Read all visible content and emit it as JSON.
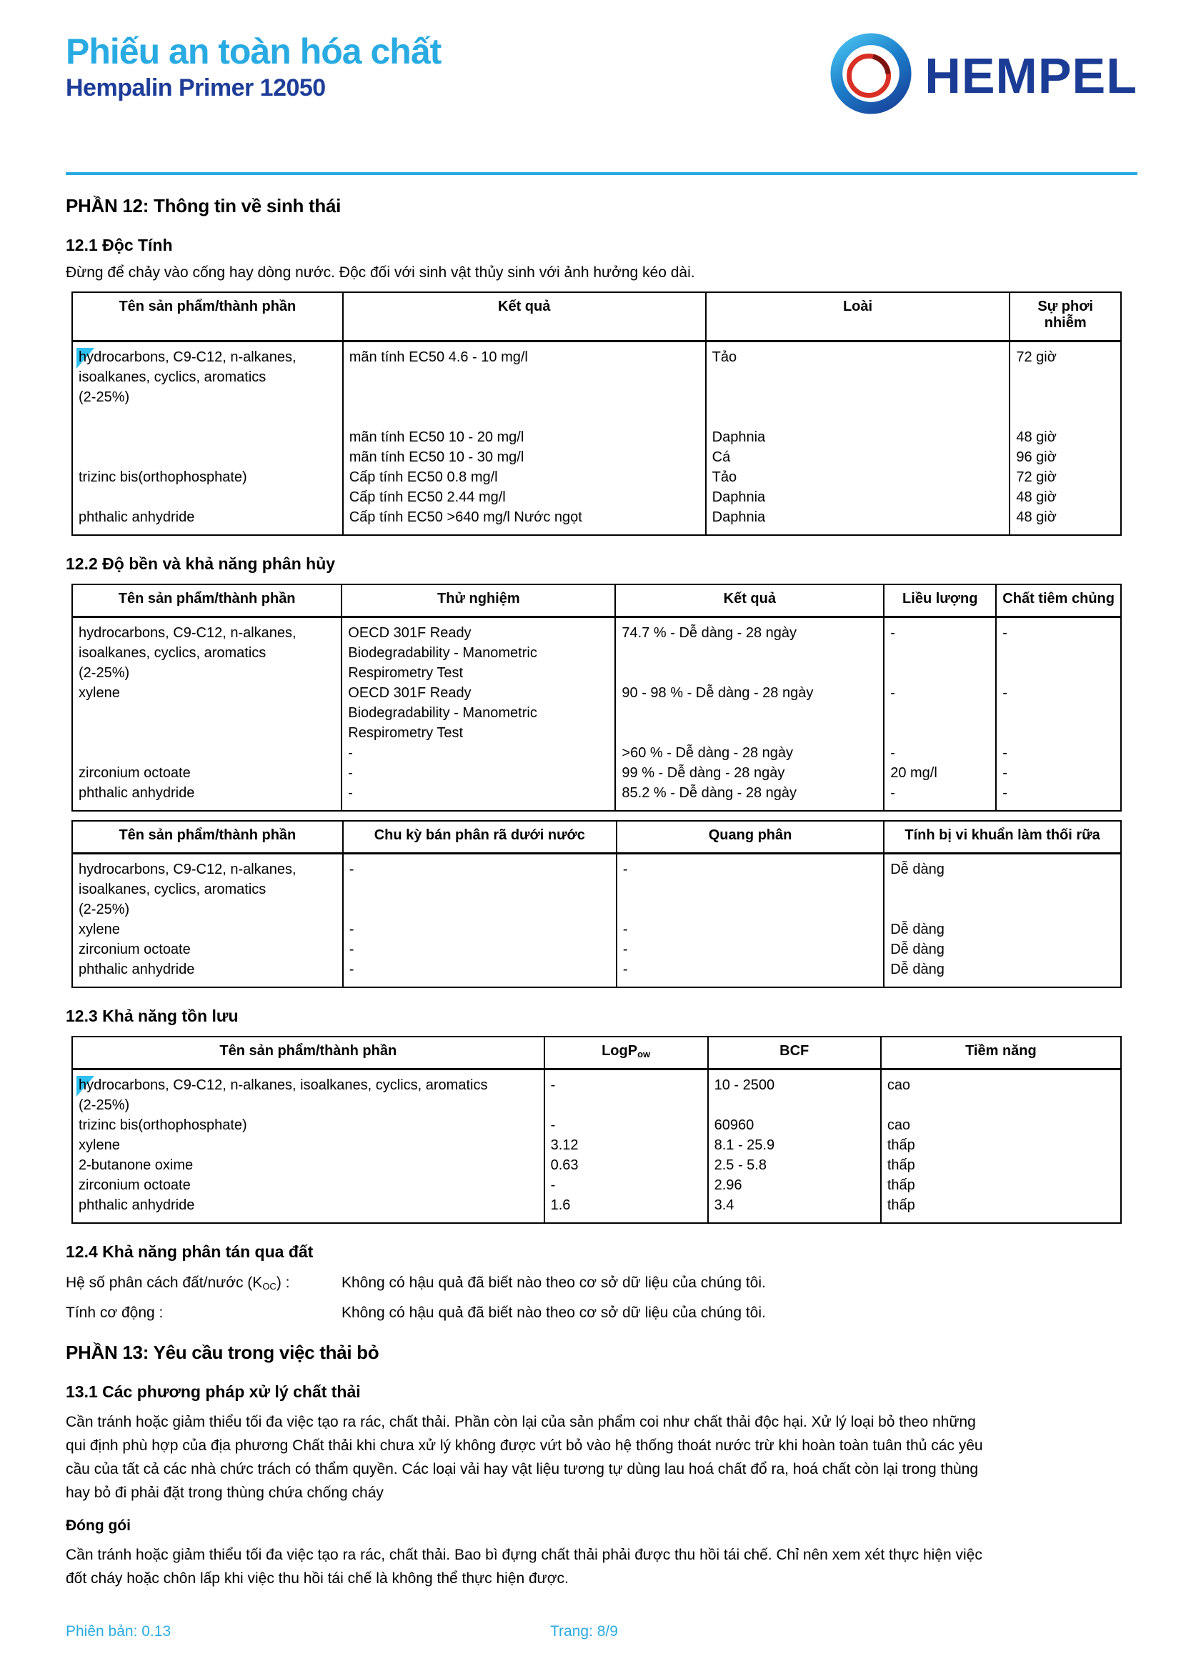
{
  "header": {
    "doc_title": "Phiếu an toàn hóa chất",
    "product_name": "Hempalin Primer 12050",
    "brand": "HEMPEL"
  },
  "colors": {
    "accent_cyan": "#29abe2",
    "navy": "#1e3d98",
    "logo_blue": "#1b3c94",
    "logo_red": "#d93025",
    "highlight_cyan": "#2ec0f0"
  },
  "section_12": {
    "title": "PHẦN 12: Thông tin về sinh thái",
    "subsection_12_1": {
      "title": "12.1 Độc Tính",
      "note": "Đừng để chảy vào cống hay dòng nước. Độc đối với sinh vật thủy sinh với ảnh hưởng kéo dài.",
      "toxicity_table": {
        "headers": [
          "Tên sản phẩm/thành phần",
          "Kết quả",
          "Loài",
          "Sự phơi nhiễm"
        ],
        "col_widths": [
          "25.8%",
          "34.6%",
          "29.0%",
          "10.6%"
        ],
        "lines": [
          [
            {
              "hl": "hy",
              "text": "drocarbons, C9-C12, n-alkanes,"
            },
            "mãn tính EC50 4.6 - 10 mg/l",
            "Tảo",
            "72 giờ"
          ],
          [
            "isoalkanes, cyclics, aromatics",
            "",
            "",
            ""
          ],
          [
            "(2-25%)",
            "",
            "",
            ""
          ],
          [
            "",
            "",
            "",
            ""
          ],
          [
            "",
            "mãn tính EC50 10 - 20 mg/l",
            "Daphnia",
            "48 giờ"
          ],
          [
            "",
            "mãn tính EC50 10 - 30 mg/l",
            "Cá",
            "96 giờ"
          ],
          [
            "trizinc bis(orthophosphate)",
            "Cấp tính EC50 0.8 mg/l",
            "Tảo",
            "72 giờ"
          ],
          [
            "",
            "Cấp tính EC50 2.44 mg/l",
            "Daphnia",
            "48 giờ"
          ],
          [
            "phthalic anhydride",
            "Cấp tính EC50 >640 mg/l Nước ngọt",
            "Daphnia",
            "48 giờ"
          ]
        ]
      }
    },
    "subsection_12_2": {
      "title": "12.2 Độ bền và khả năng phân hủy",
      "degradability_table": {
        "headers": [
          "Tên sản phẩm/thành phần",
          "Thử nghiệm",
          "Kết quả",
          "Liều lượng",
          "Chất tiêm chủng"
        ],
        "col_widths": [
          "25.7%",
          "26.1%",
          "25.6%",
          "10.7%",
          "11.9%"
        ],
        "lines": [
          [
            "hydrocarbons, C9-C12, n-alkanes,",
            "OECD 301F Ready",
            "74.7 % - Dễ dàng - 28 ngày",
            "-",
            "-"
          ],
          [
            "isoalkanes, cyclics, aromatics",
            "Biodegradability - Manometric",
            "",
            "",
            ""
          ],
          [
            "(2-25%)",
            "Respirometry Test",
            "",
            "",
            ""
          ],
          [
            "xylene",
            "OECD 301F Ready",
            "90 - 98 % - Dễ dàng - 28 ngày",
            "-",
            "-"
          ],
          [
            "",
            "Biodegradability - Manometric",
            "",
            "",
            ""
          ],
          [
            "",
            "Respirometry Test",
            "",
            "",
            ""
          ],
          [
            "",
            "-",
            ">60 % - Dễ dàng - 28 ngày",
            "-",
            "-"
          ],
          [
            "zirconium octoate",
            "-",
            "99 % - Dễ dàng - 28 ngày",
            "20 mg/l",
            "-"
          ],
          [
            "phthalic anhydride",
            "-",
            "85.2 % - Dễ dàng - 28 ngày",
            "-",
            "-"
          ]
        ]
      },
      "halflife_table": {
        "headers": [
          "Tên sản phẩm/thành phần",
          "Chu kỳ bán phân rã dưới nước",
          "Quang phân",
          "Tính bị vi khuẩn làm thối rữa"
        ],
        "col_widths": [
          "25.8%",
          "26.1%",
          "25.5%",
          "22.6%"
        ],
        "lines": [
          [
            "hydrocarbons, C9-C12, n-alkanes,",
            "-",
            "-",
            "Dễ dàng"
          ],
          [
            "isoalkanes, cyclics, aromatics",
            "",
            "",
            ""
          ],
          [
            "(2-25%)",
            "",
            "",
            ""
          ],
          [
            "xylene",
            "-",
            "-",
            "Dễ dàng"
          ],
          [
            "zirconium octoate",
            "-",
            "-",
            "Dễ dàng"
          ],
          [
            "phthalic anhydride",
            "-",
            "-",
            "Dễ dàng"
          ]
        ]
      }
    },
    "subsection_12_3": {
      "title": "12.3 Khả năng tồn lưu",
      "bioaccumulation_table": {
        "headers": [
          "Tên sản phẩm/thành phần",
          {
            "text": "LogP",
            "sub": "ow"
          },
          "BCF",
          "Tiềm năng"
        ],
        "col_widths": [
          "45.0%",
          "15.6%",
          "16.5%",
          "22.9%"
        ],
        "lines": [
          [
            {
              "hl": "hy",
              "text": "drocarbons, C9-C12, n-alkanes, isoalkanes, cyclics, aromatics"
            },
            "-",
            "10 - 2500",
            "cao"
          ],
          [
            "(2-25%)",
            "",
            "",
            ""
          ],
          [
            "trizinc bis(orthophosphate)",
            "-",
            "60960",
            "cao"
          ],
          [
            "xylene",
            "3.12",
            "8.1 - 25.9",
            "thấp"
          ],
          [
            "2-butanone oxime",
            "0.63",
            "2.5 - 5.8",
            "thấp"
          ],
          [
            "zirconium octoate",
            "-",
            "2.96",
            "thấp"
          ],
          [
            "phthalic anhydride",
            "1.6",
            "3.4",
            "thấp"
          ]
        ]
      }
    },
    "subsection_12_4": {
      "title": "12.4 Khả năng phân tán qua đất",
      "rows": [
        {
          "label_pre": "Hệ số phân cách đất/nước (K",
          "label_sub": "OC",
          "label_post": ") :",
          "value": "Không có hậu quả đã biết nào theo cơ sở dữ liệu của chúng tôi."
        },
        {
          "label_pre": "Tính cơ động :",
          "label_sub": "",
          "label_post": "",
          "value": "Không có hậu quả đã biết nào theo cơ sở dữ liệu của chúng tôi."
        }
      ]
    }
  },
  "section_13": {
    "title": "PHẦN 13: Yêu cầu trong việc thải bỏ",
    "subsection_13_1": {
      "title": "13.1 Các phương pháp xử lý chất thải",
      "disposal_lines": [
        "Cần tránh hoặc giảm thiểu tối đa việc tạo ra rác, chất thải. Phần còn lại của sản phẩm coi như chất thải độc hại. Xử lý loại bỏ theo những",
        "qui định phù hợp của địa phương Chất thải khi chưa xử lý không được vứt bỏ vào hệ thống thoát nước trừ khi hoàn toàn tuân thủ các yêu",
        "cầu của tất cả các nhà chức trách có thẩm quyền. Các loại vải hay vật liệu tương tự dùng lau hoá chất đổ ra, hoá chất còn lại trong thùng",
        "hay bỏ đi phải đặt trong thùng chứa chống cháy"
      ],
      "packaging_heading": "Đóng gói",
      "packaging_lines": [
        "Cần tránh hoặc giảm thiểu tối đa việc tạo ra rác, chất thải.  Bao bì đựng chất thải phải được thu hồi tái chế.  Chỉ nên xem xét thực hiện việc",
        "đốt cháy hoặc chôn lấp khi việc thu hồi tái chế là không thể thực hiện được."
      ]
    }
  },
  "footer": {
    "version": "Phiên bản: 0.13",
    "page": "Trang: 8/9"
  }
}
